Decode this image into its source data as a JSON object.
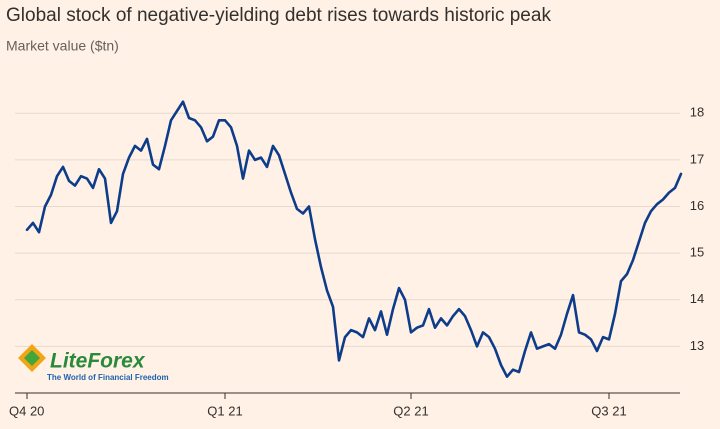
{
  "chart_data": {
    "type": "line",
    "title": "Global stock of negative-yielding debt rises towards historic peak",
    "subtitle": "Market value ($tn)",
    "categories": [
      "Q4 20",
      null,
      null,
      null,
      null,
      null,
      null,
      null,
      null,
      null,
      null,
      null,
      null,
      null,
      null,
      null,
      null,
      null,
      null,
      null,
      null,
      null,
      null,
      null,
      null,
      null,
      null,
      null,
      null,
      null,
      null,
      null,
      null,
      "Q1 21",
      null,
      null,
      null,
      null,
      null,
      null,
      null,
      null,
      null,
      null,
      null,
      null,
      null,
      null,
      null,
      null,
      null,
      null,
      null,
      null,
      null,
      null,
      null,
      null,
      null,
      null,
      null,
      null,
      null,
      null,
      "Q2 21",
      null,
      null,
      null,
      null,
      null,
      null,
      null,
      null,
      null,
      null,
      null,
      null,
      null,
      null,
      null,
      null,
      null,
      null,
      null,
      null,
      null,
      null,
      null,
      null,
      null,
      null,
      null,
      null,
      null,
      null,
      null,
      null,
      "Q3 21",
      null,
      null,
      null,
      null,
      null,
      null,
      null,
      null,
      null,
      null,
      null,
      null
    ],
    "series": [
      {
        "name": "Market value",
        "color": "#0d3d8a",
        "values": [
          15.5,
          15.65,
          15.45,
          16.0,
          16.25,
          16.65,
          16.85,
          16.55,
          16.45,
          16.65,
          16.6,
          16.4,
          16.8,
          16.6,
          15.65,
          15.9,
          16.7,
          17.05,
          17.3,
          17.2,
          17.45,
          16.9,
          16.8,
          17.3,
          17.85,
          18.05,
          18.25,
          17.9,
          17.85,
          17.7,
          17.4,
          17.5,
          17.85,
          17.85,
          17.7,
          17.3,
          16.6,
          17.2,
          17.0,
          17.05,
          16.85,
          17.3,
          17.1,
          16.7,
          16.3,
          15.95,
          15.85,
          16.0,
          15.3,
          14.7,
          14.2,
          13.85,
          12.7,
          13.2,
          13.35,
          13.3,
          13.2,
          13.6,
          13.35,
          13.75,
          13.25,
          13.8,
          14.25,
          14.0,
          13.3,
          13.4,
          13.45,
          13.8,
          13.4,
          13.6,
          13.45,
          13.65,
          13.8,
          13.65,
          13.35,
          13.0,
          13.3,
          13.2,
          12.95,
          12.6,
          12.35,
          12.5,
          12.45,
          12.9,
          13.3,
          12.95,
          13.0,
          13.05,
          12.95,
          13.25,
          13.7,
          14.1,
          13.3,
          13.25,
          13.15,
          12.9,
          13.2,
          13.15,
          13.7,
          14.4,
          14.55,
          14.85,
          15.25,
          15.65,
          15.9,
          16.05,
          16.15,
          16.3,
          16.4,
          16.7
        ]
      }
    ],
    "ylim": [
      12,
      18.5
    ],
    "yticks": [
      13,
      14,
      15,
      16,
      17,
      18
    ],
    "grid": true,
    "watermark": {
      "brand": "LiteForex",
      "tagline": "The World of Financial Freedom"
    }
  }
}
